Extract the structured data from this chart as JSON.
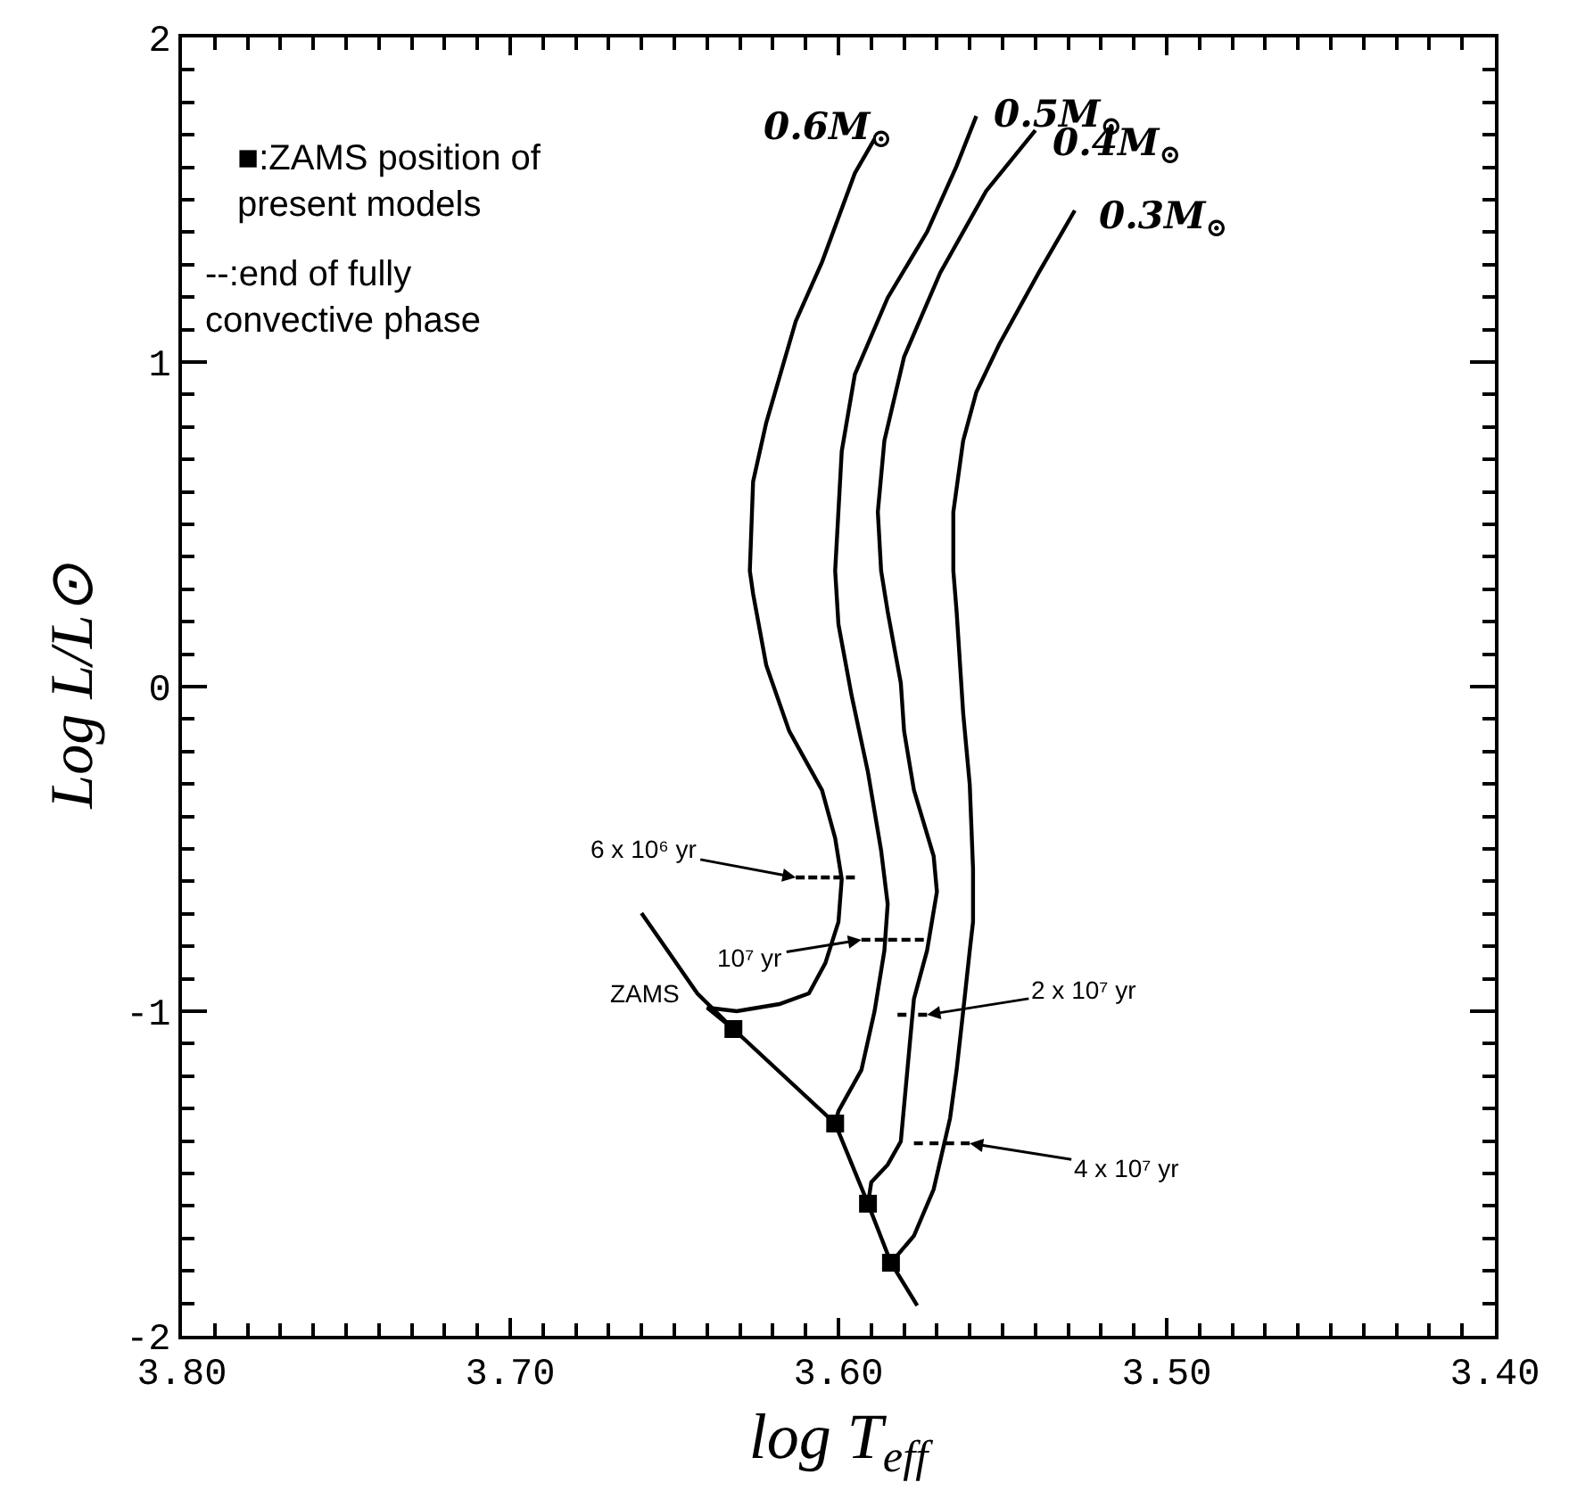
{
  "chart_data": {
    "type": "line",
    "xlabel": "log T$_{eff}$",
    "ylabel": "Log L/L⊙",
    "xlim": [
      3.8,
      3.4
    ],
    "ylim": [
      -2,
      2
    ],
    "xticks": [
      {
        "value": 3.8,
        "label": "3.80"
      },
      {
        "value": 3.7,
        "label": "3.70"
      },
      {
        "value": 3.6,
        "label": "3.60"
      },
      {
        "value": 3.5,
        "label": "3.50"
      },
      {
        "value": 3.4,
        "label": "3.40"
      }
    ],
    "yticks": [
      -2,
      -1,
      0,
      1,
      2
    ],
    "marker": "none",
    "line_style": "solid",
    "series": [
      {
        "name": "0.6M$_{⊙}$",
        "color": "#000000",
        "x": [
          3.589,
          3.595,
          3.605,
          3.613,
          3.622,
          3.626,
          3.627,
          3.626,
          3.622,
          3.615,
          3.605,
          3.601,
          3.599,
          3.6,
          3.604,
          3.609,
          3.618,
          3.631,
          3.64,
          3.632
        ],
        "values": [
          1.687,
          1.582,
          1.308,
          1.126,
          0.813,
          0.632,
          0.357,
          0.286,
          0.066,
          -0.137,
          -0.319,
          -0.467,
          -0.593,
          -0.725,
          -0.852,
          -0.945,
          -0.978,
          -1.0,
          -0.989,
          -1.055
        ]
      },
      {
        "name": "0.5M$_{⊙}$",
        "color": "#000000",
        "x": [
          3.558,
          3.564,
          3.573,
          3.585,
          3.595,
          3.599,
          3.601,
          3.6,
          3.596,
          3.591,
          3.587,
          3.585,
          3.586,
          3.589,
          3.593,
          3.6,
          3.601
        ],
        "values": [
          1.758,
          1.604,
          1.401,
          1.198,
          0.962,
          0.725,
          0.357,
          0.192,
          -0.027,
          -0.264,
          -0.505,
          -0.67,
          -0.813,
          -1.0,
          -1.181,
          -1.308,
          -1.346
        ]
      },
      {
        "name": "0.4M$_{⊙}$",
        "color": "#000000",
        "x": [
          3.54,
          3.555,
          3.569,
          3.58,
          3.586,
          3.588,
          3.587,
          3.585,
          3.581,
          3.58,
          3.577,
          3.571,
          3.57,
          3.573,
          3.577,
          3.579,
          3.581,
          3.585,
          3.59,
          3.591
        ],
        "values": [
          1.714,
          1.527,
          1.275,
          1.016,
          0.758,
          0.538,
          0.357,
          0.231,
          0.011,
          -0.137,
          -0.319,
          -0.522,
          -0.632,
          -0.813,
          -0.962,
          -1.181,
          -1.401,
          -1.473,
          -1.527,
          -1.593
        ]
      },
      {
        "name": "0.3M$_{⊙}$",
        "color": "#000000",
        "x": [
          3.528,
          3.539,
          3.551,
          3.558,
          3.562,
          3.565,
          3.565,
          3.564,
          3.562,
          3.56,
          3.559,
          3.559,
          3.56,
          3.562,
          3.564,
          3.566,
          3.571,
          3.577,
          3.584
        ],
        "values": [
          1.467,
          1.275,
          1.055,
          0.907,
          0.758,
          0.538,
          0.357,
          0.231,
          -0.082,
          -0.302,
          -0.56,
          -0.725,
          -0.813,
          -1.0,
          -1.181,
          -1.33,
          -1.549,
          -1.692,
          -1.775
        ]
      },
      {
        "name": "ZAMS",
        "color": "#000000",
        "x": [
          3.66,
          3.643,
          3.632,
          3.601,
          3.591,
          3.584,
          3.576
        ],
        "values": [
          -0.698,
          -0.945,
          -1.055,
          -1.346,
          -1.593,
          -1.775,
          -1.907
        ]
      },
      {
        "type": "scatter",
        "marker": "square",
        "color": "#000000",
        "x": [
          3.632,
          3.601,
          3.591,
          3.584
        ],
        "values": [
          -1.055,
          -1.346,
          -1.593,
          -1.775
        ]
      },
      {
        "line_style": "dashed",
        "color": "#000000",
        "x": [
          3.613,
          3.595
        ],
        "values": [
          -0.588,
          -0.588
        ]
      },
      {
        "line_style": "dashed",
        "color": "#000000",
        "x": [
          3.593,
          3.574
        ],
        "values": [
          -0.78,
          -0.78
        ]
      },
      {
        "line_style": "dashed",
        "color": "#000000",
        "x": [
          3.582,
          3.573
        ],
        "values": [
          -1.011,
          -1.011
        ]
      },
      {
        "line_style": "dashed",
        "color": "#000000",
        "x": [
          3.577,
          3.56
        ],
        "values": [
          -1.407,
          -1.407
        ]
      }
    ],
    "annotations": [
      "■:ZAMS position of\npresent models",
      "--:end of fully\nconvective phase",
      {
        "text": "6 x 10⁶ yr",
        "x": 3.613,
        "y": -0.588
      },
      {
        "text": "10⁷ yr",
        "x": 3.593,
        "y": -0.78
      },
      {
        "text": "2 x 10⁷ yr",
        "x": 3.573,
        "y": -1.011
      },
      {
        "text": "4 x 10⁷ yr",
        "x": 3.56,
        "y": -1.407
      }
    ]
  }
}
